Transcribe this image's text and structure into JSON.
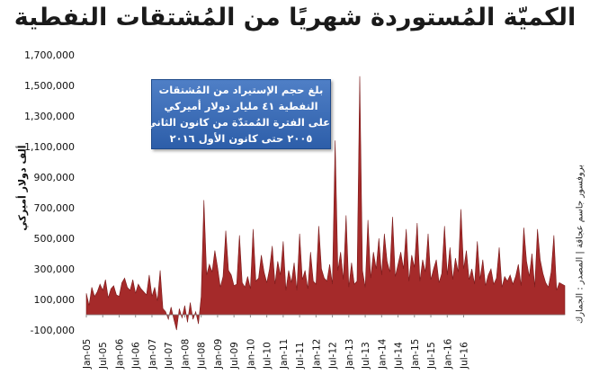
{
  "title": "الكميّة المُستوردة شهريًا من المُشتقات النفطية",
  "callout": {
    "lines": [
      "بلغ حجم الإستيراد من المُشتقات",
      "النفطية ٤١ مليار دولار أميركي",
      "على الفترة المُمتدّة من كانون الثاني",
      "٢٠٠٥ حتى كانون الأول ٢٠١٦"
    ]
  },
  "source": "بروفسور جاسم عجاقة | المصدر : الجمارك",
  "chart_data": {
    "type": "area",
    "title": "الكميّة المُستوردة شهريًا من المُشتقات النفطية",
    "xlabel": "",
    "ylabel": "ألف دولار أميركي",
    "ylim": [
      -100000,
      1700000
    ],
    "yticks": [
      -100000,
      100000,
      300000,
      500000,
      700000,
      900000,
      1100000,
      1300000,
      1500000,
      1700000
    ],
    "ytick_labels": [
      "-100,000",
      "100,000",
      "300,000",
      "500,000",
      "700,000",
      "900,000",
      "1,100,000",
      "1,300,000",
      "1,500,000",
      "1,700,000"
    ],
    "x_tick_labels": [
      "Jan-05",
      "Jul-05",
      "Jan-06",
      "Jul-06",
      "Jan-07",
      "Jul-07",
      "Jan-08",
      "Jul-08",
      "Jan-09",
      "Jul-09",
      "Jan-10",
      "Jul-10",
      "Jan-11",
      "Jul-11",
      "Jan-12",
      "Jul-12",
      "Jan-13",
      "Jul-13",
      "Jan-14",
      "Jul-14",
      "Jan-15",
      "Jul-15",
      "Jan-16",
      "Jul-16"
    ],
    "fill_color": "#a52a2a",
    "line_color": "#7a1a1a",
    "grid": false,
    "series": [
      {
        "values": [
          140000,
          60000,
          180000,
          120000,
          150000,
          200000,
          160000,
          230000,
          110000,
          170000,
          190000,
          130000,
          120000,
          210000,
          240000,
          180000,
          160000,
          230000,
          140000,
          200000,
          170000,
          150000,
          130000,
          260000,
          120000,
          180000,
          90000,
          290000,
          40000,
          20000,
          -30000,
          50000,
          -30000,
          -100000,
          40000,
          -20000,
          60000,
          -50000,
          80000,
          -30000,
          20000,
          -60000,
          120000,
          750000,
          260000,
          330000,
          280000,
          420000,
          310000,
          180000,
          250000,
          550000,
          290000,
          260000,
          190000,
          200000,
          520000,
          210000,
          180000,
          250000,
          170000,
          560000,
          220000,
          240000,
          390000,
          280000,
          210000,
          300000,
          450000,
          200000,
          350000,
          260000,
          480000,
          160000,
          290000,
          210000,
          340000,
          160000,
          530000,
          230000,
          290000,
          170000,
          410000,
          220000,
          200000,
          580000,
          300000,
          240000,
          220000,
          330000,
          200000,
          1140000,
          290000,
          410000,
          230000,
          650000,
          180000,
          340000,
          200000,
          220000,
          1560000,
          290000,
          180000,
          620000,
          240000,
          410000,
          300000,
          500000,
          260000,
          530000,
          350000,
          280000,
          640000,
          250000,
          330000,
          410000,
          300000,
          560000,
          220000,
          390000,
          310000,
          600000,
          220000,
          360000,
          280000,
          530000,
          230000,
          300000,
          360000,
          210000,
          270000,
          580000,
          260000,
          440000,
          230000,
          370000,
          280000,
          690000,
          300000,
          420000,
          230000,
          300000,
          200000,
          480000,
          230000,
          360000,
          190000,
          260000,
          300000,
          200000,
          240000,
          440000,
          180000,
          250000,
          220000,
          260000,
          200000,
          250000,
          330000,
          190000,
          570000,
          350000,
          250000,
          400000,
          180000,
          560000,
          360000,
          270000,
          210000,
          180000,
          280000,
          520000,
          160000,
          210000,
          200000,
          190000
        ]
      }
    ]
  }
}
